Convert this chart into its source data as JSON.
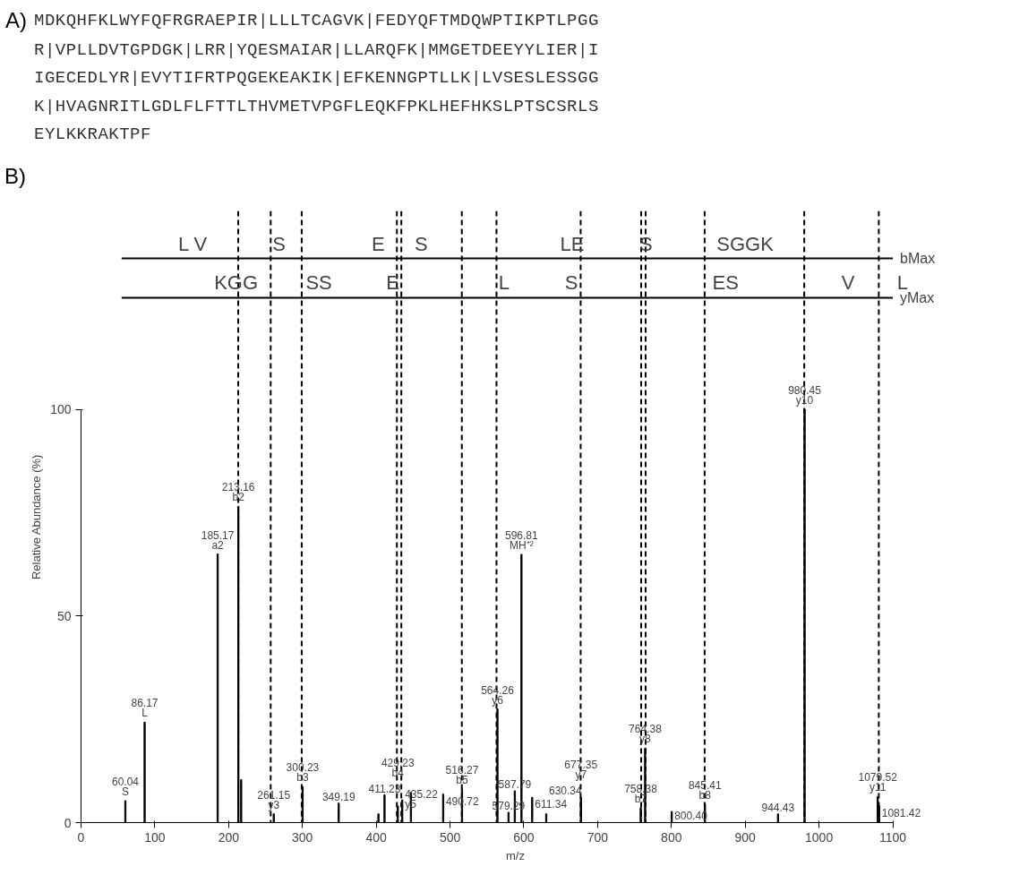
{
  "chart_data": {
    "type": "bar",
    "xlabel": "m/z",
    "ylabel": "Relative Abundance (%)",
    "x": [
      60.04,
      86.17,
      185.17,
      213.16,
      217,
      261.15,
      300.23,
      349.19,
      403,
      411.23,
      429.23,
      435.22,
      447,
      490.72,
      516.27,
      564.26,
      579.29,
      587.79,
      596.81,
      611.34,
      630.34,
      677.35,
      758.38,
      764.38,
      800.4,
      845.41,
      944.43,
      980.45,
      1079.52,
      1081.42
    ],
    "values": [
      5.3,
      24.3,
      65,
      76.5,
      10.4,
      2.1,
      8.7,
      4.7,
      2.1,
      6.7,
      4.0,
      5.5,
      7.3,
      6.9,
      8.1,
      27.5,
      2.5,
      7.7,
      64.9,
      6.1,
      2.1,
      6.1,
      3.6,
      18,
      2.7,
      4.5,
      2.1,
      100,
      6.3,
      4.1
    ],
    "color": "#000000",
    "xlim": [
      0,
      1100
    ],
    "xticks": [
      0,
      100,
      200,
      300,
      400,
      500,
      600,
      700,
      800,
      900,
      1000,
      1100
    ],
    "ylim": [
      0,
      148
    ],
    "yticks": [
      0,
      50,
      100
    ],
    "grid": false,
    "ref_lines": [
      {
        "axis": "y",
        "value": 136.5,
        "label": "bMax",
        "line_style": "solid"
      },
      {
        "axis": "y",
        "value": 127,
        "label": "yMax",
        "line_style": "solid"
      },
      {
        "axis": "x",
        "value": 213,
        "line_style": "dashed"
      },
      {
        "axis": "x",
        "value": 257,
        "line_style": "dashed"
      },
      {
        "axis": "x",
        "value": 299,
        "line_style": "dashed"
      },
      {
        "axis": "x",
        "value": 428,
        "line_style": "dashed"
      },
      {
        "axis": "x",
        "value": 434,
        "line_style": "dashed"
      },
      {
        "axis": "x",
        "value": 516,
        "line_style": "dashed"
      },
      {
        "axis": "x",
        "value": 563,
        "line_style": "dashed"
      },
      {
        "axis": "x",
        "value": 677,
        "line_style": "dashed"
      },
      {
        "axis": "x",
        "value": 759,
        "line_style": "dashed"
      },
      {
        "axis": "x",
        "value": 765,
        "line_style": "dashed"
      },
      {
        "axis": "x",
        "value": 845,
        "line_style": "dashed"
      },
      {
        "axis": "x",
        "value": 980,
        "line_style": "dashed"
      },
      {
        "axis": "x",
        "value": 1081,
        "line_style": "dashed"
      }
    ],
    "annotations": [
      "A)",
      "MDKQHFKLWYFQFRGRAEPIR|LLLTCAGVK|FEDYQFTMDQWPTIKPTLPGG",
      "R|VPLLDVTGPDGK|LRR|YQESMAIAR|LLARQFK|MMGETDEEYYLIER|I",
      "IGECEDLYR|EVYTIFRTPQGEKEAKIK|EFKENNGPTLLK|LVSESLESSGG",
      "K|HVAGNRITLGDLFLFTTLTHVMETVPGFLEQKFPKLHEFHKSLPTSCSRLS",
      "EYLKKRAKTPF",
      "B)",
      "L V",
      "S",
      "E",
      "S",
      "LE",
      "S",
      "SGGK",
      "KGG",
      "SS",
      "E",
      "L",
      "S",
      "ES",
      "V",
      "L",
      {
        "text": "60.04\nS",
        "x": 60.04,
        "y": 5.3
      },
      {
        "text": "86.17\nL",
        "x": 86.17,
        "y": 24.3
      },
      {
        "text": "185.17\na2",
        "x": 185.17,
        "y": 65
      },
      {
        "text": "213.16\nb2",
        "x": 213.16,
        "y": 76.5
      },
      {
        "text": "261.15\ny3",
        "x": 261.15,
        "y": 2.1
      },
      {
        "text": "300.23\nb3",
        "x": 300.23,
        "y": 8.7
      },
      {
        "text": "349.19",
        "x": 349.19,
        "y": 4.7
      },
      {
        "text": "411.23",
        "x": 411.23,
        "y": 6.7
      },
      {
        "text": "429.23\nb4",
        "x": 429.23,
        "y": 4.0
      },
      {
        "text": "435.22\ny5",
        "x": 435.22,
        "y": 5.5
      },
      {
        "text": "490.72",
        "x": 490.72,
        "y": 6.9
      },
      {
        "text": "516.27\nb5",
        "x": 516.27,
        "y": 8.1
      },
      {
        "text": "564.26\ny6",
        "x": 564.26,
        "y": 27.5
      },
      {
        "text": "579.29",
        "x": 579.29,
        "y": 2.5
      },
      {
        "text": "587.79",
        "x": 587.79,
        "y": 7.7
      },
      {
        "text": "596.81\nMH⁺²",
        "x": 596.81,
        "y": 64.9
      },
      {
        "text": "611.34",
        "x": 611.34,
        "y": 6.1
      },
      {
        "text": "630.34",
        "x": 630.34,
        "y": 2.1
      },
      {
        "text": "677.35\ny7",
        "x": 677.35,
        "y": 6.1
      },
      {
        "text": "758.38\nb7",
        "x": 758.38,
        "y": 3.6
      },
      {
        "text": "764.38\ny8",
        "x": 764.38,
        "y": 18
      },
      {
        "text": "800.40",
        "x": 800.4,
        "y": 2.7
      },
      {
        "text": "845.41\nb8",
        "x": 845.41,
        "y": 4.5
      },
      {
        "text": "944.43",
        "x": 944.43,
        "y": 2.1
      },
      {
        "text": "980.45\ny10",
        "x": 980.45,
        "y": 100
      },
      {
        "text": "1079.52\ny11",
        "x": 1079.52,
        "y": 6.3
      },
      {
        "text": "1081.42",
        "x": 1081.42,
        "y": 4.1
      }
    ]
  }
}
